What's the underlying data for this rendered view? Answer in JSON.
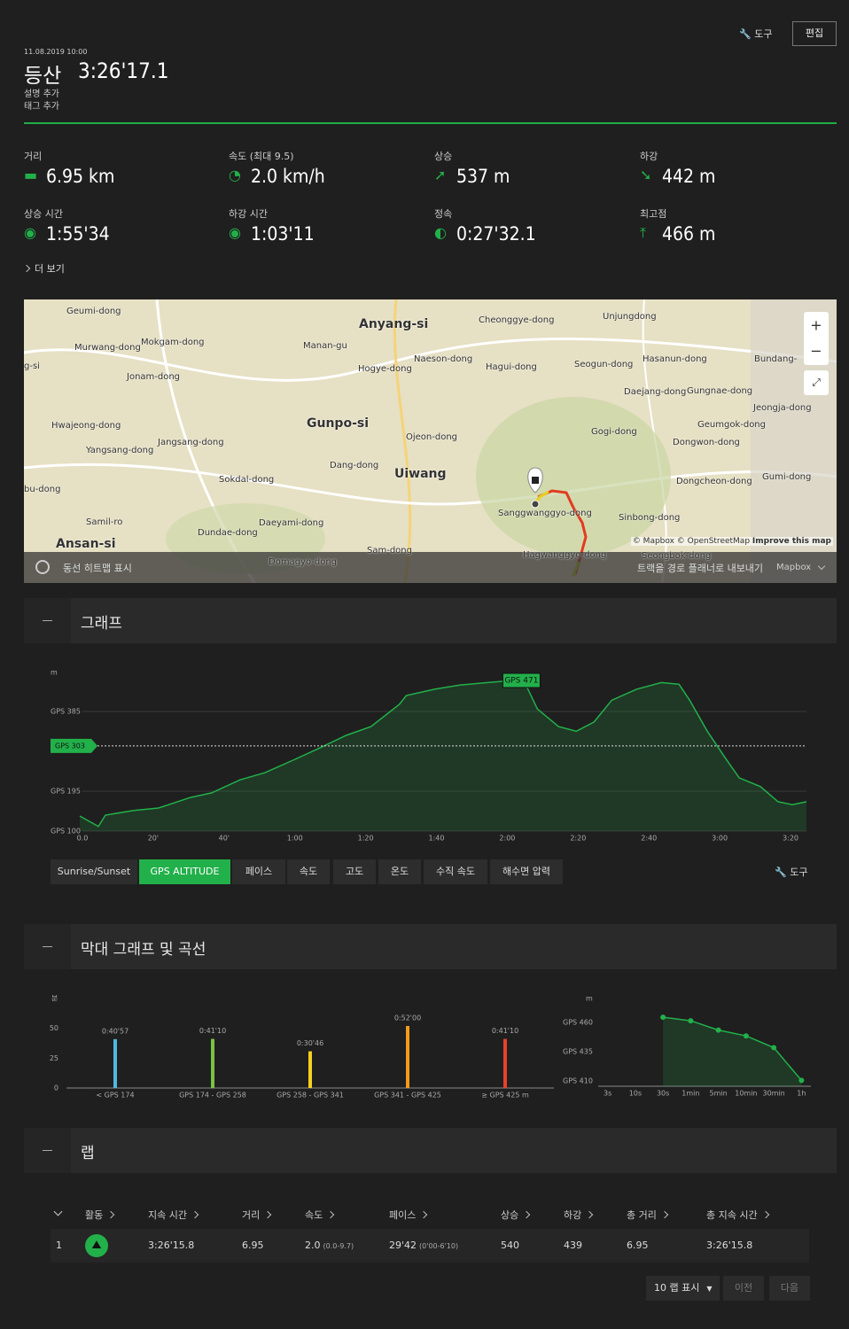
{
  "header": {
    "tools": "도구",
    "edit": "편집",
    "date": "11.08.2019 10:00",
    "activity": "등산",
    "duration": "3:26'17.1",
    "add_description": "설명 추가",
    "add_tags": "태그 추가"
  },
  "stats": [
    {
      "label": "거리",
      "value": "6.95 km"
    },
    {
      "label": "속도 (최대  9.5)",
      "value": "2.0 km/h"
    },
    {
      "label": "상승",
      "value": "537 m"
    },
    {
      "label": "하강",
      "value": "442 m"
    },
    {
      "label": "상승 시간",
      "value": "1:55'34"
    },
    {
      "label": "하강 시간",
      "value": "1:03'11"
    },
    {
      "label": "정속",
      "value": "0:27'32.1"
    },
    {
      "label": "최고점",
      "value": "466 m"
    }
  ],
  "more": "더 보기",
  "map": {
    "labels": [
      "Geumi-dong",
      "Anyang-si",
      "Cheonggye-dong",
      "Unjungdong",
      "Murwang-dong",
      "Mokgam-dong",
      "Manan-gu",
      "Naeson-dong",
      "Hagui-dong",
      "Seogun-dong",
      "Hasanun-dong",
      "Bundang-",
      "g-si",
      "Jonam-dong",
      "Hogye-dong",
      "Daejang-dong",
      "Gungnae-dong",
      "Jeongja-dong",
      "Hwajeong-dong",
      "Gunpo-si",
      "Ojeon-dong",
      "Gogi-dong",
      "Geumgok-dong",
      "Dongwon-dong",
      "Jangsang-dong",
      "Yangsang-dong",
      "Dang-dong",
      "Uiwang",
      "Sokdal-dong",
      "Dongcheon-dong",
      "Gumi-dong",
      "bu-dong",
      "Sanggwanggyo-dong",
      "Sinbong-dong",
      "Daeyami-dong",
      "Samil-ro",
      "Dundae-dong",
      "Ansan-si",
      "Sam-dong",
      "Hagwanggyo-dong",
      "Domagyo-dong",
      "Seongbok-dong"
    ],
    "attribution": "© Mapbox © OpenStreetMap",
    "improve": "Improve this map",
    "heatmap": "동선 히트맵 표시",
    "export": "트랙을 경로 플래너로 내보내기",
    "provider": "Mapbox"
  },
  "graph_section": {
    "title": "그래프",
    "tabs": [
      "Sunrise/Sunset",
      "GPS ALTITUDE",
      "페이스",
      "속도",
      "고도",
      "온도",
      "수직 속도",
      "해수면 압력"
    ],
    "tools": "도구"
  },
  "bar_section": {
    "title": "막대 그래프 및 곡선"
  },
  "chart_data": [
    {
      "type": "area",
      "y_unit": "m",
      "color": "#22b04a",
      "x": [
        0.75,
        6,
        8,
        16,
        23,
        32,
        38,
        46,
        53,
        61,
        68,
        76,
        83,
        91,
        93,
        101,
        108,
        116,
        123,
        127,
        130,
        136,
        141,
        146,
        151,
        158,
        165,
        170,
        173,
        178,
        183,
        187,
        193,
        198,
        202,
        206
      ],
      "values": [
        136,
        111,
        138,
        149,
        155,
        180,
        191,
        222,
        239,
        269,
        296,
        328,
        349,
        402,
        423,
        438,
        448,
        454,
        459,
        444,
        391,
        349,
        338,
        360,
        412,
        438,
        454,
        450,
        412,
        338,
        275,
        227,
        206,
        170,
        163,
        170
      ],
      "xlim": [
        0,
        206
      ],
      "xticks": [
        {
          "value": 0,
          "label": "0.0"
        },
        {
          "value": 20,
          "label": "20'"
        },
        {
          "value": 40,
          "label": "40'"
        },
        {
          "value": 60,
          "label": "1:00"
        },
        {
          "value": 80,
          "label": "1:20"
        },
        {
          "value": 100,
          "label": "1:40"
        },
        {
          "value": 120,
          "label": "2:00"
        },
        {
          "value": 140,
          "label": "2:20"
        },
        {
          "value": 160,
          "label": "2:40"
        },
        {
          "value": 180,
          "label": "3:00"
        },
        {
          "value": 200,
          "label": "3:20"
        }
      ],
      "ylim": [
        100,
        478
      ],
      "yticks": [
        {
          "value": 100,
          "label": "GPS 100"
        },
        {
          "value": 195,
          "label": "GPS 195"
        },
        {
          "value": 385,
          "label": "GPS 385"
        }
      ],
      "grid": true,
      "reference": {
        "value": 303,
        "label": "GPS 303"
      },
      "max_label": "GPS 471"
    },
    {
      "type": "bar",
      "y_unit": "분",
      "categories": [
        "< GPS 174",
        "GPS 174 - GPS 258",
        "GPS 258 - GPS 341",
        "GPS 341 - GPS 425",
        "≥ GPS 425 m"
      ],
      "values": [
        40.95,
        41.17,
        30.77,
        52,
        41.17
      ],
      "value_labels": [
        "0:40'57",
        "0:41'10",
        "0:30'46",
        "0:52'00",
        "0:41'10"
      ],
      "colors": [
        "#4fb8e0",
        "#7cc242",
        "#f5d020",
        "#f59a1c",
        "#e8412c"
      ],
      "ylim": [
        0,
        75
      ],
      "yticks": [
        0,
        25,
        50
      ]
    },
    {
      "type": "line",
      "y_unit": "m",
      "color": "#22b04a",
      "categories": [
        "3s",
        "10s",
        "30s",
        "1min",
        "5min",
        "10min",
        "30min",
        "1h"
      ],
      "values": [
        null,
        null,
        469,
        466,
        458,
        453,
        443,
        415
      ],
      "ylim": [
        410,
        485
      ],
      "yticks": [
        {
          "value": 410,
          "label": "GPS 410"
        },
        {
          "value": 435,
          "label": "GPS 435"
        },
        {
          "value": 460,
          "label": "GPS 460"
        }
      ]
    }
  ],
  "laps": {
    "title": "랩",
    "columns": [
      "활동",
      "지속 시간",
      "거리",
      "속도",
      "페이스",
      "상승",
      "하강",
      "총 거리",
      "총 지속 시간"
    ],
    "rows": [
      [
        [
          "1"
        ],
        [
          "3:26'15.8"
        ],
        [
          "6.95"
        ],
        [
          "2.0",
          "(0.0-9.7)"
        ],
        [
          "29'42",
          "(0'00-6'10)"
        ],
        [
          "540"
        ],
        [
          "439"
        ],
        [
          "6.95"
        ],
        [
          "3:26'15.8"
        ]
      ]
    ],
    "page_size": "10 랩 표시",
    "prev": "이전",
    "next": "다음"
  }
}
